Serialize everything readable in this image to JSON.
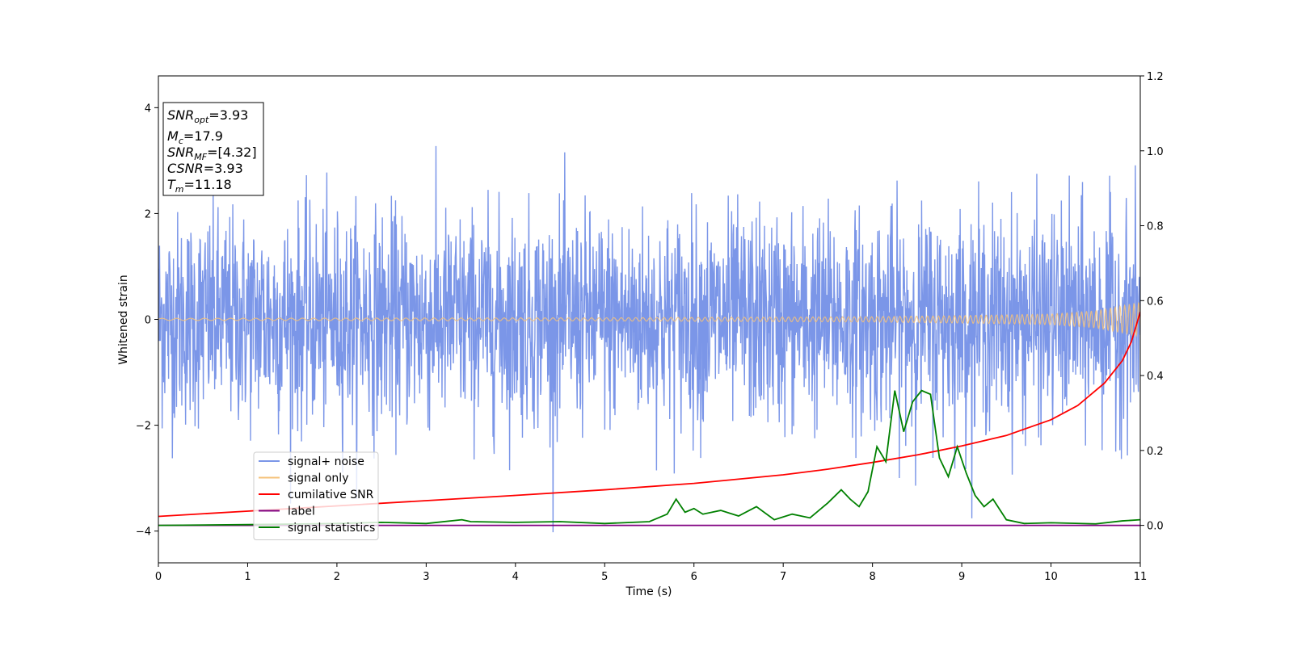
{
  "chart_data": {
    "type": "line",
    "xlabel": "Time (s)",
    "ylabel": "Whitened strain",
    "xlim": [
      0,
      11
    ],
    "ylim": [
      -4.6,
      4.6
    ],
    "y2lim": [
      -0.1,
      1.2
    ],
    "x_ticks": [
      "0",
      "1",
      "2",
      "3",
      "4",
      "5",
      "6",
      "7",
      "8",
      "9",
      "10",
      "11"
    ],
    "y_ticks": [
      "4",
      "2",
      "0",
      "−2",
      "−4"
    ],
    "y2_ticks": [
      "1.2",
      "1.0",
      "0.8",
      "0.6",
      "0.4",
      "0.2",
      "0.0"
    ],
    "legend_location": "lower-left",
    "annotation": {
      "snr_opt": {
        "sym": "SNR",
        "sub": "opt",
        "value": "=3.93"
      },
      "mc": {
        "sym": "M",
        "sub": "c",
        "value": "=17.9"
      },
      "snr_mf": {
        "sym": "SNR",
        "sub": "MF",
        "value": "=[4.32]"
      },
      "csnr": {
        "sym": "CSNR",
        "value": "=3.93"
      },
      "tm": {
        "sym": "T",
        "sub": "m",
        "value": "=11.18"
      }
    },
    "series": [
      {
        "name": "signal+ noise",
        "axis": "left",
        "color": "#7b96e8",
        "description_only": true,
        "approx_spread": 1.0
      },
      {
        "name": "signal only",
        "axis": "left",
        "color": "#f5c27a",
        "envelope_x": [
          0,
          5,
          8,
          9,
          10,
          10.5,
          11
        ],
        "envelope_y": [
          0.02,
          0.03,
          0.05,
          0.07,
          0.1,
          0.16,
          0.32
        ]
      },
      {
        "name": "cumilative SNR",
        "axis": "right",
        "color": "#ff0000",
        "x": [
          0,
          1,
          2,
          3,
          4,
          5,
          6,
          7,
          7.5,
          8,
          8.5,
          9,
          9.5,
          10,
          10.3,
          10.6,
          10.8,
          10.9,
          11
        ],
        "y": [
          0.024,
          0.038,
          0.052,
          0.066,
          0.08,
          0.095,
          0.112,
          0.135,
          0.15,
          0.168,
          0.188,
          0.212,
          0.24,
          0.282,
          0.32,
          0.38,
          0.44,
          0.49,
          0.57
        ]
      },
      {
        "name": "label",
        "axis": "right",
        "color": "#800080",
        "x": [
          0,
          11
        ],
        "y": [
          0.0,
          0.0
        ]
      },
      {
        "name": "signal statistics",
        "axis": "right",
        "color": "#008000",
        "x": [
          0,
          1,
          2,
          2.5,
          3,
          3.4,
          3.5,
          4,
          4.5,
          5,
          5.5,
          5.7,
          5.8,
          5.9,
          6.0,
          6.1,
          6.3,
          6.5,
          6.7,
          6.9,
          7.1,
          7.3,
          7.5,
          7.65,
          7.75,
          7.85,
          7.95,
          8.05,
          8.15,
          8.25,
          8.35,
          8.45,
          8.55,
          8.65,
          8.75,
          8.85,
          8.95,
          9.05,
          9.15,
          9.25,
          9.35,
          9.5,
          9.7,
          10,
          10.5,
          10.8,
          11
        ],
        "y": [
          0.0,
          0.002,
          0.005,
          0.008,
          0.005,
          0.015,
          0.01,
          0.008,
          0.01,
          0.005,
          0.01,
          0.03,
          0.07,
          0.035,
          0.045,
          0.03,
          0.04,
          0.025,
          0.05,
          0.015,
          0.03,
          0.02,
          0.06,
          0.095,
          0.07,
          0.05,
          0.09,
          0.21,
          0.17,
          0.36,
          0.25,
          0.33,
          0.36,
          0.35,
          0.18,
          0.13,
          0.21,
          0.14,
          0.08,
          0.05,
          0.07,
          0.015,
          0.005,
          0.007,
          0.004,
          0.012,
          0.015
        ]
      }
    ]
  }
}
